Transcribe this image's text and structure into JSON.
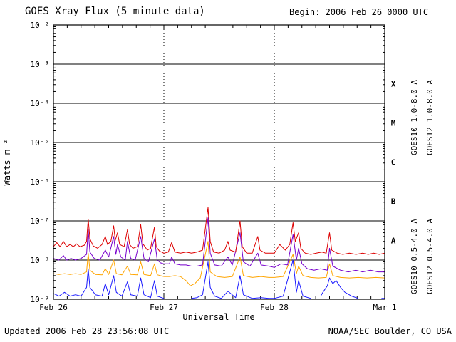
{
  "header": {
    "title": "GOES Xray Flux (5 minute data)",
    "begin_label": "Begin:  2006 Feb 26 0000 UTC"
  },
  "footer": {
    "updated": "Updated 2006 Feb 28 23:56:08 UTC",
    "credit": "NOAA/SEC Boulder, CO USA"
  },
  "chart_data": {
    "type": "line",
    "title": "GOES Xray Flux (5 minute data)",
    "xlabel": "Universal Time",
    "ylabel": "Watts m⁻²",
    "y_scale": "log10",
    "y_log_range": [
      -9,
      -2
    ],
    "x_range_days": [
      0,
      3
    ],
    "x_ticks": [
      {
        "label": "Feb 26",
        "t": 0
      },
      {
        "label": "Feb 27",
        "t": 1
      },
      {
        "label": "Feb 28",
        "t": 2
      },
      {
        "label": "Mar 1",
        "t": 3
      }
    ],
    "y_ticks": [
      {
        "label": "10⁻²",
        "exp": -2
      },
      {
        "label": "10⁻³",
        "exp": -3
      },
      {
        "label": "10⁻⁴",
        "exp": -4
      },
      {
        "label": "10⁻⁵",
        "exp": -5
      },
      {
        "label": "10⁻⁶",
        "exp": -6
      },
      {
        "label": "10⁻⁷",
        "exp": -7
      },
      {
        "label": "10⁻⁸",
        "exp": -8
      },
      {
        "label": "10⁻⁹",
        "exp": -9
      }
    ],
    "flare_classes": [
      {
        "label": "X",
        "log_center": -3.5
      },
      {
        "label": "M",
        "log_center": -4.5
      },
      {
        "label": "C",
        "log_center": -5.5
      },
      {
        "label": "B",
        "log_center": -6.5
      },
      {
        "label": "A",
        "log_center": -7.5
      }
    ],
    "grid": {
      "h_lines_exp": [
        -3,
        -4,
        -5,
        -6,
        -7,
        -8
      ],
      "v_dotted_days": [
        1,
        2
      ],
      "x_minor_step_days": 0.125
    },
    "legend": [
      {
        "text": "GOES10 1.0-8.0 A",
        "color": "#7700cc",
        "col": 0,
        "row": 0
      },
      {
        "text": "GOES12 1.0-8.0 A",
        "color": "#dd0000",
        "col": 1,
        "row": 0
      },
      {
        "text": "GOES10 0.5-4.0 A",
        "color": "#ffa500",
        "col": 0,
        "row": 1
      },
      {
        "text": "GOES12 0.5-4.0 A",
        "color": "#1a1aff",
        "col": 1,
        "row": 1
      }
    ],
    "series": [
      {
        "id": "goes12-short",
        "name": "GOES12 0.5-4.0 A",
        "color": "#1a1aff",
        "points": [
          [
            0.0,
            1.4e-09
          ],
          [
            0.05,
            1.2e-09
          ],
          [
            0.1,
            1.5e-09
          ],
          [
            0.15,
            1.2e-09
          ],
          [
            0.2,
            1.3e-09
          ],
          [
            0.25,
            1.2e-09
          ],
          [
            0.3,
            2e-09
          ],
          [
            0.315,
            6e-09
          ],
          [
            0.33,
            2e-09
          ],
          [
            0.38,
            1.3e-09
          ],
          [
            0.44,
            1.2e-09
          ],
          [
            0.47,
            2.5e-09
          ],
          [
            0.5,
            1.3e-09
          ],
          [
            0.545,
            4e-09
          ],
          [
            0.57,
            1.5e-09
          ],
          [
            0.62,
            1.2e-09
          ],
          [
            0.67,
            2.8e-09
          ],
          [
            0.7,
            1.3e-09
          ],
          [
            0.76,
            1.2e-09
          ],
          [
            0.79,
            3.5e-09
          ],
          [
            0.82,
            1.3e-09
          ],
          [
            0.88,
            1.1e-09
          ],
          [
            0.915,
            3e-09
          ],
          [
            0.94,
            1.2e-09
          ],
          [
            1.0,
            1.05e-09
          ],
          [
            1.05,
            null
          ],
          [
            1.22,
            null
          ],
          [
            1.25,
            1.05e-09
          ],
          [
            1.3,
            1.1e-09
          ],
          [
            1.35,
            1.3e-09
          ],
          [
            1.4,
            9e-09
          ],
          [
            1.42,
            2e-09
          ],
          [
            1.46,
            1.2e-09
          ],
          [
            1.52,
            1.05e-09
          ],
          [
            1.58,
            1.6e-09
          ],
          [
            1.65,
            1.1e-09
          ],
          [
            1.69,
            4e-09
          ],
          [
            1.72,
            1.3e-09
          ],
          [
            1.8,
            1.05e-09
          ],
          [
            1.88,
            1.1e-09
          ],
          [
            1.95,
            1.05e-09
          ],
          [
            2.0,
            1.05e-09
          ],
          [
            2.08,
            1.2e-09
          ],
          [
            2.17,
            1e-08
          ],
          [
            2.2,
            1.5e-09
          ],
          [
            2.22,
            3e-09
          ],
          [
            2.26,
            1.2e-09
          ],
          [
            2.33,
            1.05e-09
          ],
          [
            2.38,
            null
          ],
          [
            2.42,
            1.2e-09
          ],
          [
            2.44,
            1.5e-09
          ],
          [
            2.48,
            2.2e-09
          ],
          [
            2.5,
            3.5e-09
          ],
          [
            2.53,
            2.5e-09
          ],
          [
            2.56,
            3e-09
          ],
          [
            2.6,
            2e-09
          ],
          [
            2.64,
            1.5e-09
          ],
          [
            2.7,
            1.2e-09
          ],
          [
            2.76,
            1.05e-09
          ],
          [
            2.82,
            null
          ],
          [
            2.95,
            null
          ],
          [
            2.97,
            1.05e-09
          ],
          [
            3.0,
            1.05e-09
          ]
        ]
      },
      {
        "id": "goes10-short",
        "name": "GOES10 0.5-4.0 A",
        "color": "#ffa500",
        "points": [
          [
            0.0,
            4.5e-09
          ],
          [
            0.05,
            4.3e-09
          ],
          [
            0.1,
            4.5e-09
          ],
          [
            0.15,
            4.3e-09
          ],
          [
            0.2,
            4.5e-09
          ],
          [
            0.25,
            4.3e-09
          ],
          [
            0.3,
            5e-09
          ],
          [
            0.315,
            1.5e-08
          ],
          [
            0.33,
            5.5e-09
          ],
          [
            0.38,
            4.3e-09
          ],
          [
            0.44,
            4.2e-09
          ],
          [
            0.47,
            6e-09
          ],
          [
            0.5,
            4.3e-09
          ],
          [
            0.545,
            1e-08
          ],
          [
            0.57,
            4.5e-09
          ],
          [
            0.62,
            4.2e-09
          ],
          [
            0.67,
            7e-09
          ],
          [
            0.7,
            4.3e-09
          ],
          [
            0.76,
            4.2e-09
          ],
          [
            0.79,
            9e-09
          ],
          [
            0.82,
            4.3e-09
          ],
          [
            0.88,
            4e-09
          ],
          [
            0.915,
            8e-09
          ],
          [
            0.94,
            4.2e-09
          ],
          [
            1.0,
            3.8e-09
          ],
          [
            1.05,
            3.8e-09
          ],
          [
            1.1,
            4e-09
          ],
          [
            1.15,
            3.8e-09
          ],
          [
            1.2,
            3e-09
          ],
          [
            1.24,
            2.2e-09
          ],
          [
            1.28,
            2.5e-09
          ],
          [
            1.33,
            3.5e-09
          ],
          [
            1.4,
            3e-08
          ],
          [
            1.42,
            5e-09
          ],
          [
            1.48,
            3.8e-09
          ],
          [
            1.55,
            3.6e-09
          ],
          [
            1.62,
            3.8e-09
          ],
          [
            1.69,
            1.2e-08
          ],
          [
            1.72,
            4e-09
          ],
          [
            1.8,
            3.6e-09
          ],
          [
            1.88,
            3.8e-09
          ],
          [
            1.95,
            3.6e-09
          ],
          [
            2.0,
            3.6e-09
          ],
          [
            2.08,
            3.8e-09
          ],
          [
            2.17,
            1.4e-08
          ],
          [
            2.2,
            4.5e-09
          ],
          [
            2.22,
            7e-09
          ],
          [
            2.26,
            4e-09
          ],
          [
            2.33,
            3.6e-09
          ],
          [
            2.4,
            3.5e-09
          ],
          [
            2.47,
            3.6e-09
          ],
          [
            2.5,
            8e-09
          ],
          [
            2.53,
            4e-09
          ],
          [
            2.6,
            3.6e-09
          ],
          [
            2.68,
            3.5e-09
          ],
          [
            2.76,
            3.6e-09
          ],
          [
            2.84,
            3.5e-09
          ],
          [
            2.92,
            3.6e-09
          ],
          [
            3.0,
            3.5e-09
          ]
        ]
      },
      {
        "id": "goes10-long",
        "name": "GOES10 1.0-8.0 A",
        "color": "#7700cc",
        "points": [
          [
            0.0,
            1.1e-08
          ],
          [
            0.05,
            1e-08
          ],
          [
            0.09,
            1.3e-08
          ],
          [
            0.12,
            1e-08
          ],
          [
            0.16,
            1.1e-08
          ],
          [
            0.2,
            1e-08
          ],
          [
            0.25,
            1.1e-08
          ],
          [
            0.3,
            1.4e-08
          ],
          [
            0.315,
            6e-08
          ],
          [
            0.33,
            1.6e-08
          ],
          [
            0.37,
            1.1e-08
          ],
          [
            0.42,
            1e-08
          ],
          [
            0.47,
            1.8e-08
          ],
          [
            0.5,
            1.2e-08
          ],
          [
            0.545,
            4e-08
          ],
          [
            0.565,
            1.4e-08
          ],
          [
            0.58,
            2.5e-08
          ],
          [
            0.61,
            1.2e-08
          ],
          [
            0.65,
            1e-08
          ],
          [
            0.67,
            3e-08
          ],
          [
            0.7,
            1.1e-08
          ],
          [
            0.74,
            1e-08
          ],
          [
            0.79,
            4e-08
          ],
          [
            0.82,
            1.1e-08
          ],
          [
            0.86,
            9e-09
          ],
          [
            0.915,
            3.5e-08
          ],
          [
            0.94,
            1e-08
          ],
          [
            0.97,
            8.5e-09
          ],
          [
            1.0,
            8e-09
          ],
          [
            1.05,
            8e-09
          ],
          [
            1.07,
            1.2e-08
          ],
          [
            1.1,
            8e-09
          ],
          [
            1.15,
            7.5e-09
          ],
          [
            1.2,
            7.5e-09
          ],
          [
            1.25,
            7e-09
          ],
          [
            1.3,
            7e-09
          ],
          [
            1.35,
            7.5e-09
          ],
          [
            1.4,
            1.2e-07
          ],
          [
            1.42,
            1.5e-08
          ],
          [
            1.46,
            7.5e-09
          ],
          [
            1.52,
            7e-09
          ],
          [
            1.58,
            1.2e-08
          ],
          [
            1.62,
            7.5e-09
          ],
          [
            1.69,
            5e-08
          ],
          [
            1.72,
            9e-09
          ],
          [
            1.78,
            7e-09
          ],
          [
            1.85,
            1.5e-08
          ],
          [
            1.88,
            7.5e-09
          ],
          [
            1.95,
            7e-09
          ],
          [
            2.0,
            6.5e-09
          ],
          [
            2.06,
            8e-09
          ],
          [
            2.12,
            7.5e-09
          ],
          [
            2.17,
            4.5e-08
          ],
          [
            2.2,
            1e-08
          ],
          [
            2.22,
            2e-08
          ],
          [
            2.25,
            8e-09
          ],
          [
            2.3,
            6e-09
          ],
          [
            2.36,
            5.5e-09
          ],
          [
            2.42,
            6e-09
          ],
          [
            2.48,
            5.5e-09
          ],
          [
            2.5,
            2e-08
          ],
          [
            2.53,
            7e-09
          ],
          [
            2.6,
            5.5e-09
          ],
          [
            2.67,
            5e-09
          ],
          [
            2.74,
            5.5e-09
          ],
          [
            2.8,
            5e-09
          ],
          [
            2.87,
            5.5e-09
          ],
          [
            2.94,
            5e-09
          ],
          [
            3.0,
            5e-09
          ]
        ]
      },
      {
        "id": "goes12-long",
        "name": "GOES12 1.0-8.0 A",
        "color": "#dd0000",
        "points": [
          [
            0.0,
            2.2e-08
          ],
          [
            0.03,
            2.8e-08
          ],
          [
            0.06,
            2.2e-08
          ],
          [
            0.09,
            3e-08
          ],
          [
            0.12,
            2.2e-08
          ],
          [
            0.15,
            2.5e-08
          ],
          [
            0.18,
            2.2e-08
          ],
          [
            0.21,
            2.6e-08
          ],
          [
            0.24,
            2.2e-08
          ],
          [
            0.28,
            2.4e-08
          ],
          [
            0.3,
            3e-08
          ],
          [
            0.315,
            1.1e-07
          ],
          [
            0.33,
            3.5e-08
          ],
          [
            0.36,
            2.3e-08
          ],
          [
            0.4,
            2e-08
          ],
          [
            0.44,
            2.5e-08
          ],
          [
            0.47,
            4e-08
          ],
          [
            0.49,
            2.5e-08
          ],
          [
            0.52,
            3e-08
          ],
          [
            0.545,
            7.5e-08
          ],
          [
            0.56,
            3.2e-08
          ],
          [
            0.58,
            5e-08
          ],
          [
            0.6,
            2.5e-08
          ],
          [
            0.64,
            2.2e-08
          ],
          [
            0.67,
            6e-08
          ],
          [
            0.69,
            2.5e-08
          ],
          [
            0.72,
            2e-08
          ],
          [
            0.76,
            2.2e-08
          ],
          [
            0.79,
            8e-08
          ],
          [
            0.81,
            2.6e-08
          ],
          [
            0.85,
            1.8e-08
          ],
          [
            0.88,
            2e-08
          ],
          [
            0.915,
            7e-08
          ],
          [
            0.93,
            2.2e-08
          ],
          [
            0.96,
            1.7e-08
          ],
          [
            1.0,
            1.5e-08
          ],
          [
            1.04,
            1.6e-08
          ],
          [
            1.07,
            2.8e-08
          ],
          [
            1.1,
            1.6e-08
          ],
          [
            1.15,
            1.5e-08
          ],
          [
            1.2,
            1.6e-08
          ],
          [
            1.25,
            1.5e-08
          ],
          [
            1.3,
            1.6e-08
          ],
          [
            1.35,
            1.8e-08
          ],
          [
            1.4,
            2.2e-07
          ],
          [
            1.42,
            3e-08
          ],
          [
            1.45,
            1.6e-08
          ],
          [
            1.5,
            1.5e-08
          ],
          [
            1.55,
            1.8e-08
          ],
          [
            1.58,
            3e-08
          ],
          [
            1.6,
            1.8e-08
          ],
          [
            1.65,
            1.6e-08
          ],
          [
            1.69,
            1e-07
          ],
          [
            1.71,
            2.2e-08
          ],
          [
            1.75,
            1.5e-08
          ],
          [
            1.8,
            1.5e-08
          ],
          [
            1.85,
            4e-08
          ],
          [
            1.87,
            1.8e-08
          ],
          [
            1.92,
            1.5e-08
          ],
          [
            1.97,
            1.5e-08
          ],
          [
            2.0,
            1.5e-08
          ],
          [
            2.05,
            2.5e-08
          ],
          [
            2.1,
            1.8e-08
          ],
          [
            2.14,
            2.5e-08
          ],
          [
            2.17,
            9e-08
          ],
          [
            2.19,
            3e-08
          ],
          [
            2.22,
            5e-08
          ],
          [
            2.24,
            2e-08
          ],
          [
            2.28,
            1.5e-08
          ],
          [
            2.33,
            1.4e-08
          ],
          [
            2.38,
            1.5e-08
          ],
          [
            2.43,
            1.6e-08
          ],
          [
            2.47,
            1.5e-08
          ],
          [
            2.5,
            5e-08
          ],
          [
            2.52,
            1.8e-08
          ],
          [
            2.57,
            1.5e-08
          ],
          [
            2.62,
            1.4e-08
          ],
          [
            2.68,
            1.5e-08
          ],
          [
            2.74,
            1.4e-08
          ],
          [
            2.8,
            1.5e-08
          ],
          [
            2.85,
            1.4e-08
          ],
          [
            2.9,
            1.5e-08
          ],
          [
            2.95,
            1.4e-08
          ],
          [
            3.0,
            1.5e-08
          ]
        ]
      }
    ]
  }
}
